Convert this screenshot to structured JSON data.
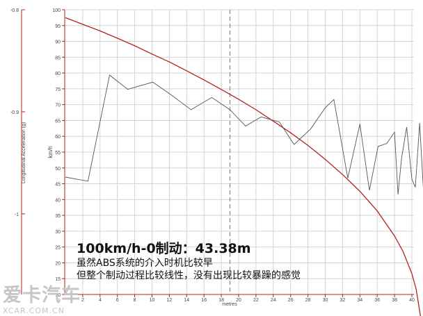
{
  "chart_data": {
    "type": "line",
    "xlabel": "metres",
    "ylabel_left": "Longitudinal Acceleration (g)",
    "ylabel_right": "km/h",
    "x_ticks": [
      2,
      4,
      6,
      8,
      10,
      12,
      14,
      16,
      18,
      20,
      22,
      24,
      26,
      28,
      30,
      32,
      34,
      36,
      38,
      40
    ],
    "xlim": [
      0,
      41.5
    ],
    "speed_ticks": [
      10,
      15,
      20,
      25,
      30,
      35,
      40,
      45,
      50,
      55,
      60,
      65,
      70,
      75,
      80,
      85,
      90,
      95,
      100
    ],
    "speed_lim": [
      10,
      100
    ],
    "accel_ticks": [
      -0.8,
      -0.9,
      -1
    ],
    "accel_lim": [
      -1.079,
      -0.8
    ],
    "marker_x": 19,
    "series": [
      {
        "axis": "speed",
        "color": "#b52020",
        "x": [
          0,
          2,
          4,
          6,
          8,
          10,
          12,
          14,
          16,
          18,
          20,
          22,
          24,
          26,
          28,
          30,
          32,
          34,
          36,
          38,
          39,
          40,
          40.5,
          41,
          41.4
        ],
        "values": [
          97.5,
          95.4,
          93.3,
          91.0,
          88.6,
          86.0,
          83.5,
          80.7,
          77.8,
          74.8,
          71.7,
          68.4,
          64.8,
          61.1,
          57.1,
          52.7,
          47.9,
          42.6,
          36.4,
          28.5,
          23.5,
          16.6,
          11.6,
          3.0,
          0
        ]
      },
      {
        "axis": "accel",
        "color": "#555555",
        "x": [
          0,
          2.6,
          5.1,
          7.2,
          10.1,
          12.3,
          14.5,
          16.9,
          19.0,
          20.8,
          22.6,
          24.7,
          26.4,
          28.3,
          30.0,
          31.0,
          32.6,
          34.0,
          35.1,
          36.1,
          37.1,
          38.0,
          38.4,
          38.8,
          39.4,
          40.0,
          40.4,
          40.9,
          41.3,
          41.4
        ],
        "values": [
          -0.964,
          -0.968,
          -0.864,
          -0.878,
          -0.871,
          -0.884,
          -0.898,
          -0.886,
          -0.898,
          -0.914,
          -0.905,
          -0.91,
          -0.932,
          -0.917,
          -0.896,
          -0.888,
          -0.965,
          -0.912,
          -0.977,
          -0.934,
          -0.931,
          -0.92,
          -0.981,
          -0.946,
          -0.915,
          -0.966,
          -0.974,
          -0.911,
          -0.972,
          -0.985
        ]
      }
    ]
  },
  "annotation": {
    "headline": "100km/h-0制动：43.38m",
    "line1": "虽然ABS系统的介入时机比较早",
    "line2": "但整个制动过程比较线性，没有出现比较暴躁的感觉"
  },
  "watermark": {
    "main": "爱卡汽车",
    "site": "XCAR.COM.CN"
  },
  "colors": {
    "axis": "#b52020",
    "speed_curve": "#b52020",
    "accel_curve": "#555555",
    "grid": "#d4d4d4",
    "marker": "#888888"
  }
}
